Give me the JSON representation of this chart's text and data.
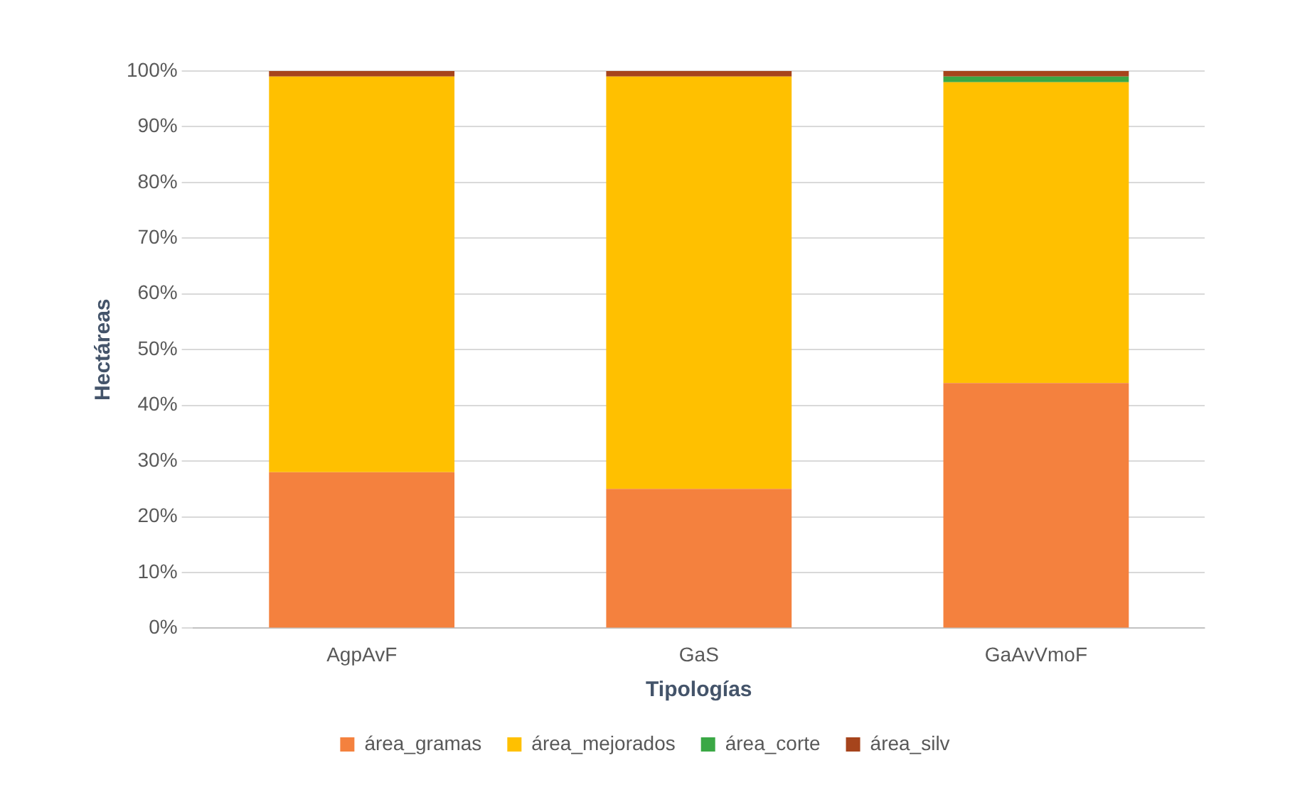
{
  "chart_data": {
    "type": "bar",
    "stacked": true,
    "xlabel": "Tipologías",
    "ylabel": "Hectáreas",
    "categories": [
      "AgpAvF",
      "GaS",
      "GaAvVmoF"
    ],
    "series": [
      {
        "name": "área_gramas",
        "color": "#f4813e",
        "values": [
          28,
          25,
          44
        ]
      },
      {
        "name": "área_mejorados",
        "color": "#ffc000",
        "values": [
          71,
          74,
          54
        ]
      },
      {
        "name": "área_corte",
        "color": "#3aa845",
        "values": [
          0,
          0,
          1
        ]
      },
      {
        "name": "área_silv",
        "color": "#a6441c",
        "values": [
          1,
          1,
          1
        ]
      }
    ],
    "ylim": [
      0,
      100
    ],
    "yticks": [
      {
        "value": 0,
        "label": "0%"
      },
      {
        "value": 10,
        "label": "10%"
      },
      {
        "value": 20,
        "label": "20%"
      },
      {
        "value": 30,
        "label": "30%"
      },
      {
        "value": 40,
        "label": "40%"
      },
      {
        "value": 50,
        "label": "50%"
      },
      {
        "value": 60,
        "label": "60%"
      },
      {
        "value": 70,
        "label": "70%"
      },
      {
        "value": 80,
        "label": "80%"
      },
      {
        "value": 90,
        "label": "90%"
      },
      {
        "value": 100,
        "label": "100%"
      }
    ],
    "grid": "y",
    "legend": "bottom"
  }
}
